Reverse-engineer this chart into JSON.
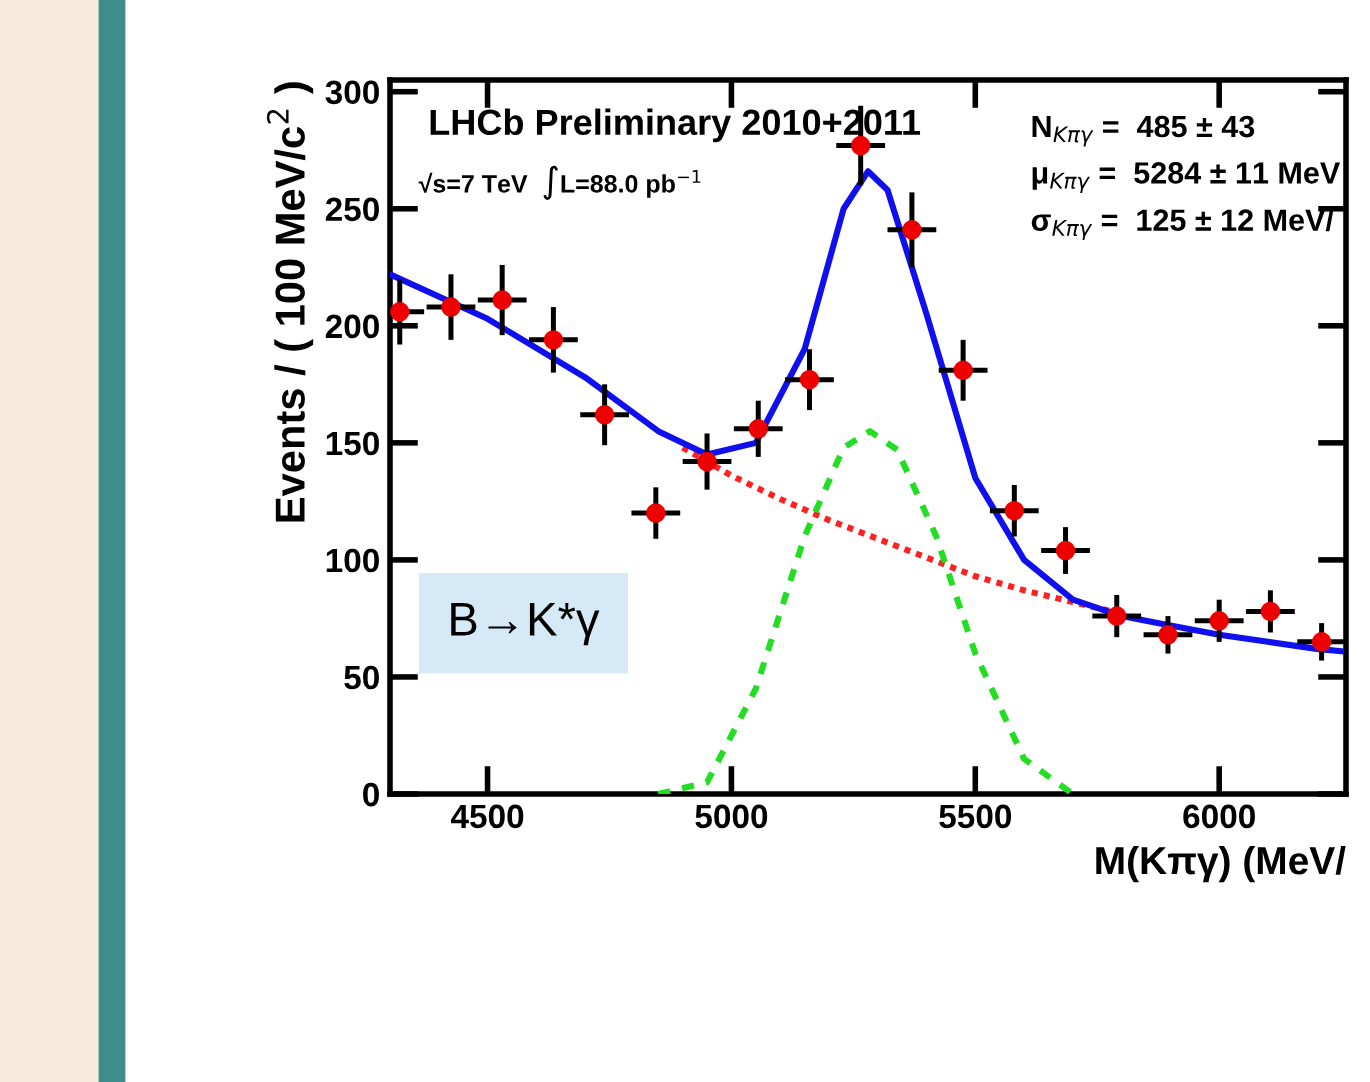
{
  "chart_data": {
    "type": "scatter",
    "xlabel": "M(Kπγ) (MeV/",
    "ylabel": "Events / ( 100 MeV/c$^{2}$ )",
    "annotations": [
      "LHCb Preliminary 2010+2011",
      "√s=7 TeV  ∫L=88.0 pb$^{−1}$",
      "N$_{Kπγ}$ =  485 ± 43",
      "μ$_{Kπγ}$ =  5284 ± 11 MeV",
      "σ$_{Kπγ}$ =  125 ± 12 MeV/",
      "B→K*γ"
    ],
    "xlim": [
      4300,
      6260
    ],
    "xticks": [
      4500,
      5000,
      5500,
      6000
    ],
    "ylim": [
      0,
      305
    ],
    "yticks": [
      0,
      50,
      100,
      150,
      200,
      250,
      300
    ],
    "grid": false,
    "legend": false,
    "series": [
      {
        "type": "line",
        "color": "#ff2020",
        "line_style": "dotted",
        "marker": "none",
        "x": [
          4900,
          5000,
          5100,
          5200,
          5300,
          5400,
          5500,
          5600,
          5700,
          5800
        ],
        "values": [
          148,
          136,
          126,
          117,
          109,
          101,
          93,
          87,
          82,
          77
        ]
      },
      {
        "type": "line",
        "color": "#22dd22",
        "line_style": "dashed",
        "marker": "none",
        "x": [
          4850,
          4950,
          5050,
          5150,
          5230,
          5284,
          5340,
          5420,
          5500,
          5600,
          5700
        ],
        "values": [
          0,
          5,
          45,
          110,
          148,
          155,
          147,
          110,
          60,
          15,
          0
        ]
      },
      {
        "type": "line",
        "color": "#1010ee",
        "line_style": "solid",
        "marker": "none",
        "x": [
          4300,
          4500,
          4700,
          4850,
          4950,
          5050,
          5150,
          5230,
          5280,
          5320,
          5400,
          5500,
          5600,
          5700,
          5800,
          5900,
          6000,
          6100,
          6200,
          6250
        ],
        "values": [
          222,
          203,
          178,
          155,
          145,
          150,
          190,
          250,
          266,
          258,
          205,
          135,
          100,
          83,
          76,
          72,
          68,
          65,
          62,
          61
        ]
      },
      {
        "color": "#ee0000",
        "marker": "circle",
        "x": [
          4320,
          4425,
          4530,
          4635,
          4740,
          4845,
          4950,
          5055,
          5160,
          5265,
          5370,
          5475,
          5580,
          5685,
          5790,
          5895,
          6000,
          6105,
          6210
        ],
        "values": [
          206,
          208,
          211,
          194,
          162,
          120,
          142,
          156,
          177,
          277,
          241,
          181,
          121,
          104,
          76,
          68,
          74,
          78,
          65
        ],
        "errors": [
          14,
          14,
          15,
          14,
          13,
          11,
          12,
          12,
          13,
          17,
          16,
          13,
          11,
          10,
          9,
          8,
          9,
          9,
          8
        ],
        "xerrors": [
          50,
          50,
          50,
          50,
          50,
          50,
          50,
          50,
          50,
          50,
          50,
          50,
          50,
          50,
          50,
          50,
          50,
          50,
          50
        ]
      }
    ]
  }
}
